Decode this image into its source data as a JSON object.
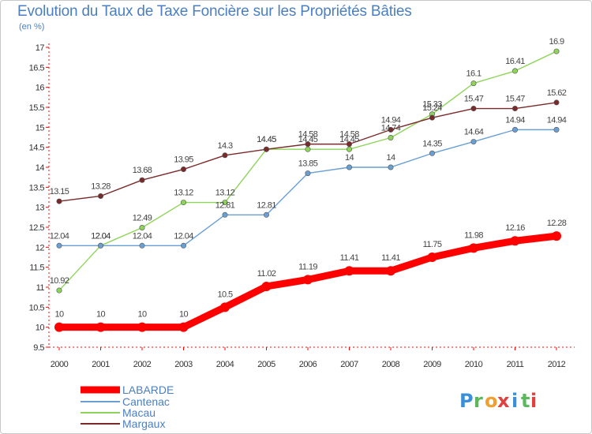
{
  "title": "Evolution du Taux de Taxe Foncière sur les Propriétés Bâties",
  "unit": "(en %)",
  "brand": {
    "letters": [
      "P",
      "r",
      "o",
      "x",
      "i",
      "t",
      "i"
    ],
    "colors": [
      "#3b8fd8",
      "#5cb85c",
      "#f0a030",
      "#e04040",
      "#3b8fd8",
      "#5cb85c",
      "#e04040"
    ]
  },
  "chart_data": {
    "type": "line",
    "title": "Evolution du Taux de Taxe Foncière sur les Propriétés Bâties",
    "ylabel": "(en %)",
    "categories": [
      "2000",
      "2001",
      "2002",
      "2003",
      "2004",
      "2005",
      "2006",
      "2007",
      "2008",
      "2009",
      "2010",
      "2011",
      "2012"
    ],
    "ylim": [
      9.5,
      17
    ],
    "yticks": [
      "9.5",
      "10",
      "10.5",
      "11",
      "11.5",
      "12",
      "12.5",
      "13",
      "13.5",
      "14",
      "14.5",
      "15",
      "15.5",
      "16",
      "16.5",
      "17"
    ],
    "grid": false,
    "legend_position": "bottom-left",
    "series": [
      {
        "name": "LABARDE",
        "color": "#ff0000",
        "values": [
          10,
          10,
          10,
          10,
          10.5,
          11.02,
          11.19,
          11.41,
          11.41,
          11.75,
          11.98,
          12.16,
          12.28
        ],
        "labels": [
          "10",
          "10",
          "10",
          "10",
          "10.5",
          "11.02",
          "11.19",
          "11.41",
          "11.41",
          "11.75",
          "11.98",
          "12.16",
          "12.28"
        ]
      },
      {
        "name": "Cantenac",
        "color": "#6a9fd4",
        "values": [
          12.04,
          12.04,
          12.04,
          12.04,
          12.81,
          12.81,
          13.85,
          14,
          14,
          14.35,
          14.64,
          14.94,
          14.94
        ],
        "labels": [
          "12.04",
          "12.04",
          "12.04",
          "12.04",
          "12.81",
          "12.81",
          "13.85",
          "14",
          "14",
          "14.35",
          "14.64",
          "14.94",
          "14.94"
        ]
      },
      {
        "name": "Macau",
        "color": "#8ed45a",
        "values": [
          10.92,
          12.04,
          12.49,
          13.12,
          13.12,
          14.45,
          14.45,
          14.45,
          14.74,
          15.33,
          16.1,
          16.41,
          16.9
        ],
        "labels": [
          "10.92",
          "12.04",
          "12.49",
          "13.12",
          "13.12",
          "14.45",
          "14.45",
          "14.45",
          "14.74",
          "15.33",
          "16.1",
          "16.41",
          "16.9"
        ]
      },
      {
        "name": "Margaux",
        "color": "#7a2a2a",
        "values": [
          13.15,
          13.28,
          13.68,
          13.95,
          14.3,
          14.45,
          14.58,
          14.58,
          14.94,
          15.24,
          15.47,
          15.47,
          15.62
        ],
        "labels": [
          "13.15",
          "13.28",
          "13.68",
          "13.95",
          "14.3",
          "14.45",
          "14.58",
          "14.58",
          "14.94",
          "15.24",
          "15.47",
          "15.47",
          "15.62"
        ]
      }
    ]
  }
}
